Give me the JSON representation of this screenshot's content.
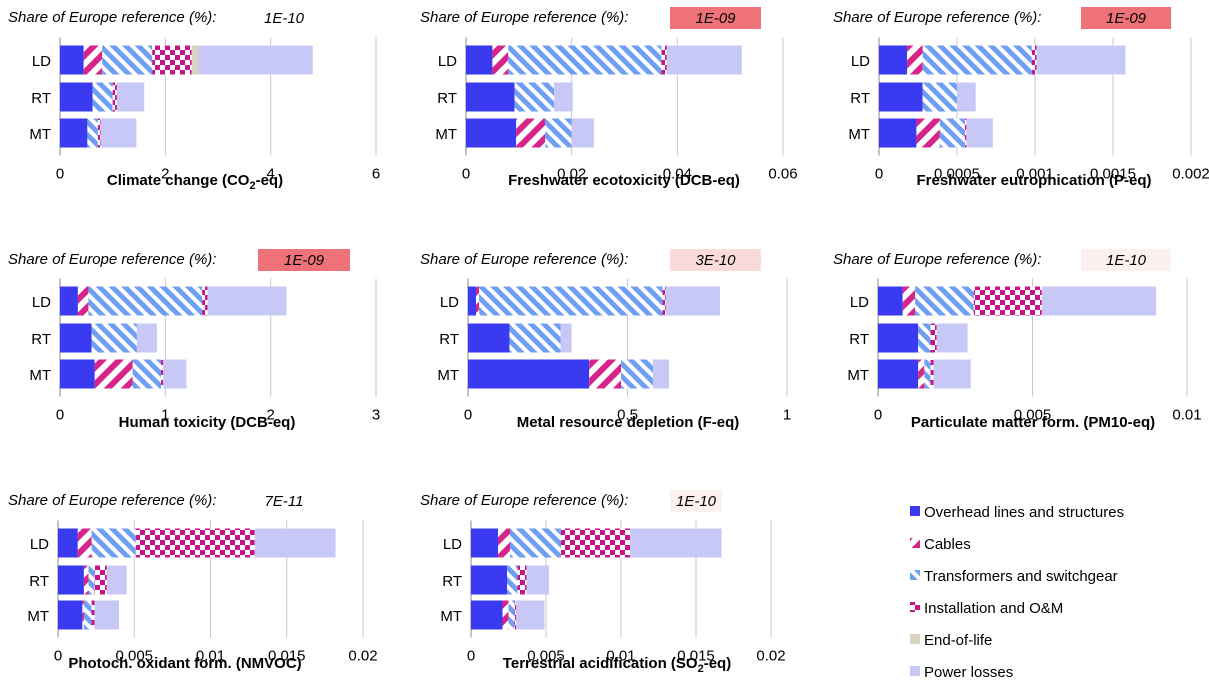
{
  "share_label": "Share of Europe reference (%):",
  "rows": [
    "LD",
    "RT",
    "MT"
  ],
  "components": [
    {
      "name": "Overhead lines and structures",
      "color": "#3a3af0",
      "pattern": "solid"
    },
    {
      "name": "Cables",
      "color": "#d6248a",
      "pattern": "diag"
    },
    {
      "name": "Transformers and switchgear",
      "color": "#6f9ff2",
      "pattern": "diagrev"
    },
    {
      "name": "Installation and O&M",
      "color": "#c8148a",
      "pattern": "check"
    },
    {
      "name": "End-of-life",
      "color": "#d9d3c0",
      "pattern": "solid"
    },
    {
      "name": "Power losses",
      "color": "#c8c8f6",
      "pattern": "solid"
    }
  ],
  "chart_data": [
    {
      "type": "bar",
      "orientation": "horizontal",
      "stacked": true,
      "xlabel": {
        "main": "Climate change (CO",
        "sub": "2",
        "tail": "-eq)"
      },
      "share": "1E-10",
      "share_color": "#ffffff",
      "xlim": [
        0,
        6
      ],
      "ticks": [
        "0",
        "2",
        "4",
        "6"
      ],
      "tick_values": [
        0,
        2,
        4,
        6
      ],
      "categories": [
        "LD",
        "RT",
        "MT"
      ],
      "values": {
        "LD": [
          0.45,
          0.35,
          0.95,
          0.75,
          0.12,
          2.18
        ],
        "RT": [
          0.62,
          0,
          0.38,
          0.08,
          0,
          0.52
        ],
        "MT": [
          0.52,
          0,
          0.2,
          0.05,
          0,
          0.68
        ]
      }
    },
    {
      "type": "bar",
      "orientation": "horizontal",
      "stacked": true,
      "xlabel": {
        "main": "Freshwater ecotoxicity (DCB-eq)",
        "sub": "",
        "tail": ""
      },
      "share": "1E-09",
      "share_color": "#ee7277",
      "xlim": [
        0,
        0.06
      ],
      "ticks": [
        "0",
        "0.02",
        "0.04",
        "0.06"
      ],
      "tick_values": [
        0,
        0.02,
        0.04,
        0.06
      ],
      "categories": [
        "LD",
        "RT",
        "MT"
      ],
      "values": {
        "LD": [
          0.005,
          0.003,
          0.029,
          0.001,
          0,
          0.0142
        ],
        "RT": [
          0.0092,
          0,
          0.0075,
          0,
          0,
          0.0035
        ],
        "MT": [
          0.0095,
          0.0055,
          0.005,
          0,
          0,
          0.0042
        ]
      }
    },
    {
      "type": "bar",
      "orientation": "horizontal",
      "stacked": true,
      "xlabel": {
        "main": "Freshwater eutrophication (P-eq)",
        "sub": "",
        "tail": ""
      },
      "share": "1E-09",
      "share_color": "#ee7277",
      "xlim": [
        0,
        0.002
      ],
      "ticks": [
        "0",
        "0.0005",
        "0.001",
        "0.0015",
        "0.002"
      ],
      "tick_values": [
        0,
        0.0005,
        0.001,
        0.0015,
        0.002
      ],
      "categories": [
        "LD",
        "RT",
        "MT"
      ],
      "values": {
        "LD": [
          0.00018,
          0.0001,
          0.0007,
          3e-05,
          0,
          0.00057
        ],
        "RT": [
          0.00028,
          0,
          0.00022,
          0,
          0,
          0.00012
        ],
        "MT": [
          0.00024,
          0.00015,
          0.00016,
          1e-05,
          0,
          0.00017
        ]
      }
    },
    {
      "type": "bar",
      "orientation": "horizontal",
      "stacked": true,
      "xlabel": {
        "main": "Human toxicity (DCB-eq)",
        "sub": "",
        "tail": ""
      },
      "share": "1E-09",
      "share_color": "#ee7277",
      "xlim": [
        0,
        3
      ],
      "ticks": [
        "0",
        "1",
        "2",
        "3"
      ],
      "tick_values": [
        0,
        1,
        2,
        3
      ],
      "categories": [
        "LD",
        "RT",
        "MT"
      ],
      "values": {
        "LD": [
          0.17,
          0.1,
          1.08,
          0.05,
          0,
          0.75
        ],
        "RT": [
          0.3,
          0,
          0.43,
          0,
          0,
          0.19
        ],
        "MT": [
          0.33,
          0.36,
          0.27,
          0.02,
          0,
          0.22
        ]
      }
    },
    {
      "type": "bar",
      "orientation": "horizontal",
      "stacked": true,
      "xlabel": {
        "main": "Metal resource depletion (F-eq)",
        "sub": "",
        "tail": ""
      },
      "share": "3E-10",
      "share_color": "#fbdada",
      "xlim": [
        0,
        1
      ],
      "ticks": [
        "0",
        "0.5",
        "1"
      ],
      "tick_values": [
        0,
        0.5,
        1
      ],
      "categories": [
        "LD",
        "RT",
        "MT"
      ],
      "values": {
        "LD": [
          0.025,
          0.01,
          0.575,
          0.01,
          0,
          0.17
        ],
        "RT": [
          0.13,
          0,
          0.16,
          0,
          0,
          0.035
        ],
        "MT": [
          0.38,
          0.1,
          0.1,
          0,
          0,
          0.05
        ]
      }
    },
    {
      "type": "bar",
      "orientation": "horizontal",
      "stacked": true,
      "xlabel": {
        "main": "Particulate matter form. (PM10-eq)",
        "sub": "",
        "tail": ""
      },
      "share": "1E-10",
      "share_color": "#fdf0f0",
      "xlim": [
        0,
        0.01
      ],
      "ticks": [
        "0",
        "0.005",
        "0.01"
      ],
      "tick_values": [
        0,
        0.005,
        0.01
      ],
      "categories": [
        "LD",
        "RT",
        "MT"
      ],
      "values": {
        "LD": [
          0.0008,
          0.0004,
          0.0019,
          0.0022,
          0,
          0.0037
        ],
        "RT": [
          0.0013,
          0,
          0.0004,
          0.0002,
          0,
          0.001
        ],
        "MT": [
          0.0013,
          0.0002,
          0.0002,
          0.0001,
          0,
          0.0012
        ]
      }
    },
    {
      "type": "bar",
      "orientation": "horizontal",
      "stacked": true,
      "xlabel": {
        "main": "Photoch. oxidant form. (NMVOC)",
        "sub": "",
        "tail": ""
      },
      "share": "7E-11",
      "share_color": "#ffffff",
      "xlim": [
        0,
        0.02
      ],
      "ticks": [
        "0",
        "0.005",
        "0.01",
        "0.015",
        "0.02"
      ],
      "tick_values": [
        0,
        0.005,
        0.01,
        0.015,
        0.02
      ],
      "categories": [
        "LD",
        "RT",
        "MT"
      ],
      "values": {
        "LD": [
          0.0013,
          0.0009,
          0.0029,
          0.0078,
          0,
          0.0053
        ],
        "RT": [
          0.0017,
          0.0003,
          0.0004,
          0.0008,
          0,
          0.0013
        ],
        "MT": [
          0.0016,
          0.0001,
          0.0005,
          0.0002,
          0,
          0.0016
        ]
      }
    },
    {
      "type": "bar",
      "orientation": "horizontal",
      "stacked": true,
      "xlabel": {
        "main": "Terrestrial acidification (SO",
        "sub": "2",
        "tail": "-eq)"
      },
      "share": "1E-10",
      "share_color": "#fdf0f0",
      "xlim": [
        0,
        0.02
      ],
      "ticks": [
        "0",
        "0.005",
        "0.01",
        "0.015",
        "0.02"
      ],
      "tick_values": [
        0,
        0.005,
        0.01,
        0.015,
        0.02
      ],
      "categories": [
        "LD",
        "RT",
        "MT"
      ],
      "values": {
        "LD": [
          0.0018,
          0.0008,
          0.0034,
          0.0046,
          0,
          0.0061
        ],
        "RT": [
          0.0024,
          0,
          0.0007,
          0.0006,
          0,
          0.0015
        ],
        "MT": [
          0.0021,
          0.0004,
          0.0004,
          0.0001,
          0,
          0.0019
        ]
      }
    }
  ]
}
